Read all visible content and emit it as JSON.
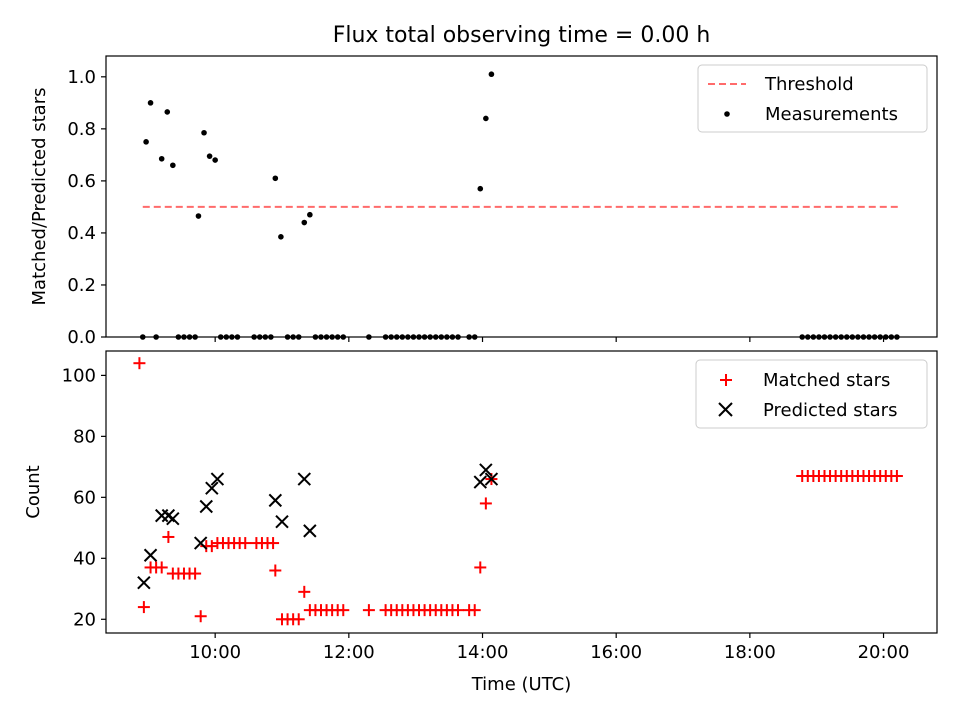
{
  "chart_data": [
    {
      "type": "scatter",
      "title": "Flux total observing time = 0.00 h",
      "xlabel": "",
      "ylabel": "Matched/Predicted stars",
      "xlim": [
        "08:22",
        "20:48"
      ],
      "ylim": [
        0,
        1.08
      ],
      "x_ticks": [
        "10:00",
        "12:00",
        "14:00",
        "16:00",
        "18:00",
        "20:00"
      ],
      "y_ticks": [
        "0.0",
        "0.2",
        "0.4",
        "0.6",
        "0.8",
        "1.0"
      ],
      "legend": {
        "position": "top-right",
        "entries": [
          "Threshold",
          "Measurements"
        ]
      },
      "threshold": {
        "name": "Threshold",
        "y": 0.5,
        "x_start": "08:55",
        "x_end": "20:15",
        "color": "#ff6b6b"
      },
      "series": [
        {
          "name": "Measurements",
          "color": "#000000",
          "points": [
            [
              "08:55",
              0
            ],
            [
              "08:58",
              0.75
            ],
            [
              "09:02",
              0.9
            ],
            [
              "09:07",
              0
            ],
            [
              "09:12",
              0.685
            ],
            [
              "09:17",
              0.865
            ],
            [
              "09:22",
              0.66
            ],
            [
              "09:27",
              0
            ],
            [
              "09:32",
              0
            ],
            [
              "09:37",
              0
            ],
            [
              "09:42",
              0
            ],
            [
              "09:45",
              0.465
            ],
            [
              "09:50",
              0.785
            ],
            [
              "09:55",
              0.695
            ],
            [
              "10:00",
              0.68
            ],
            [
              "10:05",
              0
            ],
            [
              "10:10",
              0
            ],
            [
              "10:15",
              0
            ],
            [
              "10:20",
              0
            ],
            [
              "10:35",
              0
            ],
            [
              "10:40",
              0
            ],
            [
              "10:45",
              0
            ],
            [
              "10:50",
              0
            ],
            [
              "10:54",
              0.61
            ],
            [
              "10:59",
              0.385
            ],
            [
              "11:05",
              0
            ],
            [
              "11:10",
              0
            ],
            [
              "11:15",
              0
            ],
            [
              "11:20",
              0.44
            ],
            [
              "11:25",
              0.47
            ],
            [
              "11:30",
              0
            ],
            [
              "11:35",
              0
            ],
            [
              "11:40",
              0
            ],
            [
              "11:45",
              0
            ],
            [
              "11:50",
              0
            ],
            [
              "11:55",
              0
            ],
            [
              "12:18",
              0
            ],
            [
              "12:33",
              0
            ],
            [
              "12:38",
              0
            ],
            [
              "12:43",
              0
            ],
            [
              "12:48",
              0
            ],
            [
              "12:53",
              0
            ],
            [
              "12:58",
              0
            ],
            [
              "13:03",
              0
            ],
            [
              "13:08",
              0
            ],
            [
              "13:13",
              0
            ],
            [
              "13:18",
              0
            ],
            [
              "13:23",
              0
            ],
            [
              "13:28",
              0
            ],
            [
              "13:33",
              0
            ],
            [
              "13:38",
              0
            ],
            [
              "13:48",
              0
            ],
            [
              "13:53",
              0
            ],
            [
              "13:58",
              0.57
            ],
            [
              "14:03",
              0.84
            ],
            [
              "14:08",
              1.01
            ],
            [
              "18:47",
              0
            ],
            [
              "18:52",
              0
            ],
            [
              "18:57",
              0
            ],
            [
              "19:02",
              0
            ],
            [
              "19:07",
              0
            ],
            [
              "19:12",
              0
            ],
            [
              "19:17",
              0
            ],
            [
              "19:22",
              0
            ],
            [
              "19:27",
              0
            ],
            [
              "19:32",
              0
            ],
            [
              "19:37",
              0
            ],
            [
              "19:42",
              0
            ],
            [
              "19:47",
              0
            ],
            [
              "19:52",
              0
            ],
            [
              "19:57",
              0
            ],
            [
              "20:02",
              0
            ],
            [
              "20:07",
              0
            ],
            [
              "20:12",
              0
            ]
          ]
        }
      ]
    },
    {
      "type": "scatter",
      "title": "",
      "xlabel": "Time (UTC)",
      "ylabel": "Count",
      "xlim": [
        "08:22",
        "20:48"
      ],
      "ylim": [
        15.5,
        108
      ],
      "x_ticks": [
        "10:00",
        "12:00",
        "14:00",
        "16:00",
        "18:00",
        "20:00"
      ],
      "y_ticks": [
        "20",
        "40",
        "60",
        "80",
        "100"
      ],
      "legend": {
        "position": "top-right",
        "entries": [
          "Matched stars",
          "Predicted stars"
        ]
      },
      "series": [
        {
          "name": "Matched stars",
          "marker": "plus",
          "color": "#ff0000",
          "points": [
            [
              "08:52",
              104
            ],
            [
              "08:56",
              24
            ],
            [
              "09:02",
              37
            ],
            [
              "09:07",
              37
            ],
            [
              "09:12",
              37
            ],
            [
              "09:18",
              47
            ],
            [
              "09:22",
              35
            ],
            [
              "09:27",
              35
            ],
            [
              "09:32",
              35
            ],
            [
              "09:37",
              35
            ],
            [
              "09:42",
              35
            ],
            [
              "09:47",
              21
            ],
            [
              "09:52",
              44
            ],
            [
              "09:57",
              44
            ],
            [
              "10:02",
              45
            ],
            [
              "10:07",
              45
            ],
            [
              "10:12",
              45
            ],
            [
              "10:17",
              45
            ],
            [
              "10:22",
              45
            ],
            [
              "10:27",
              45
            ],
            [
              "10:37",
              45
            ],
            [
              "10:42",
              45
            ],
            [
              "10:47",
              45
            ],
            [
              "10:52",
              45
            ],
            [
              "10:54",
              36
            ],
            [
              "11:00",
              20
            ],
            [
              "11:05",
              20
            ],
            [
              "11:10",
              20
            ],
            [
              "11:15",
              20
            ],
            [
              "11:20",
              29
            ],
            [
              "11:25",
              23
            ],
            [
              "11:30",
              23
            ],
            [
              "11:35",
              23
            ],
            [
              "11:40",
              23
            ],
            [
              "11:45",
              23
            ],
            [
              "11:50",
              23
            ],
            [
              "11:55",
              23
            ],
            [
              "12:18",
              23
            ],
            [
              "12:33",
              23
            ],
            [
              "12:38",
              23
            ],
            [
              "12:43",
              23
            ],
            [
              "12:48",
              23
            ],
            [
              "12:53",
              23
            ],
            [
              "12:58",
              23
            ],
            [
              "13:03",
              23
            ],
            [
              "13:08",
              23
            ],
            [
              "13:13",
              23
            ],
            [
              "13:18",
              23
            ],
            [
              "13:23",
              23
            ],
            [
              "13:28",
              23
            ],
            [
              "13:33",
              23
            ],
            [
              "13:38",
              23
            ],
            [
              "13:48",
              23
            ],
            [
              "13:53",
              23
            ],
            [
              "13:58",
              37
            ],
            [
              "14:03",
              58
            ],
            [
              "14:08",
              66
            ],
            [
              "18:47",
              67
            ],
            [
              "18:52",
              67
            ],
            [
              "18:57",
              67
            ],
            [
              "19:02",
              67
            ],
            [
              "19:07",
              67
            ],
            [
              "19:12",
              67
            ],
            [
              "19:17",
              67
            ],
            [
              "19:22",
              67
            ],
            [
              "19:27",
              67
            ],
            [
              "19:32",
              67
            ],
            [
              "19:37",
              67
            ],
            [
              "19:42",
              67
            ],
            [
              "19:47",
              67
            ],
            [
              "19:52",
              67
            ],
            [
              "19:57",
              67
            ],
            [
              "20:02",
              67
            ],
            [
              "20:07",
              67
            ],
            [
              "20:12",
              67
            ]
          ]
        },
        {
          "name": "Predicted stars",
          "marker": "x",
          "color": "#000000",
          "points": [
            [
              "08:56",
              32
            ],
            [
              "09:02",
              41
            ],
            [
              "09:12",
              54
            ],
            [
              "09:18",
              54
            ],
            [
              "09:22",
              53
            ],
            [
              "09:47",
              45
            ],
            [
              "09:52",
              57
            ],
            [
              "09:57",
              63
            ],
            [
              "10:02",
              66
            ],
            [
              "10:54",
              59
            ],
            [
              "11:00",
              52
            ],
            [
              "11:20",
              66
            ],
            [
              "11:25",
              49
            ],
            [
              "13:58",
              65
            ],
            [
              "14:03",
              69
            ],
            [
              "14:08",
              66
            ]
          ]
        }
      ]
    }
  ]
}
